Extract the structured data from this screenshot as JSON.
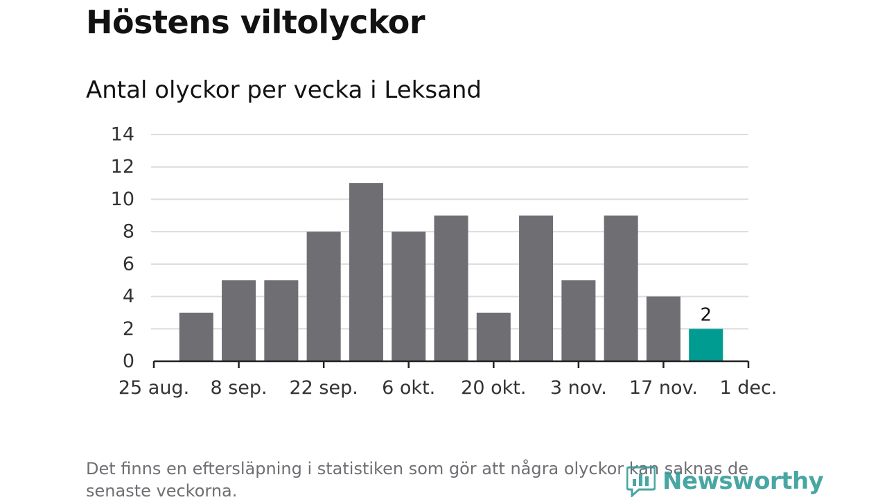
{
  "title": "Höstens viltolyckor",
  "footnote": "Det finns en eftersläpning i statistiken som gör att några olyckor kan saknas de senaste veckorna.",
  "brand": {
    "name": "Newsworthy",
    "logo_icon": "bar-chart-speech-bubble-icon",
    "color": "#2f9a97"
  },
  "chart_data": {
    "type": "bar",
    "title": "Antal olyckor per vecka i Leksand",
    "xlabel": "",
    "ylabel": "",
    "ylim": [
      0,
      14
    ],
    "yticks": [
      0,
      2,
      4,
      6,
      8,
      10,
      12,
      14
    ],
    "x_ticks": [
      "25 aug.",
      "8 sep.",
      "22 sep.",
      "6 okt.",
      "20 okt.",
      "3 nov.",
      "17 nov.",
      "1 dec."
    ],
    "values": [
      3,
      5,
      5,
      8,
      11,
      8,
      9,
      3,
      9,
      5,
      9,
      4,
      2
    ],
    "grid": true,
    "bar_color": "#6f6e73",
    "highlight_color": "#009c91",
    "highlight_index": 12,
    "data_labels": [
      {
        "index": 12,
        "text": "2"
      }
    ]
  }
}
